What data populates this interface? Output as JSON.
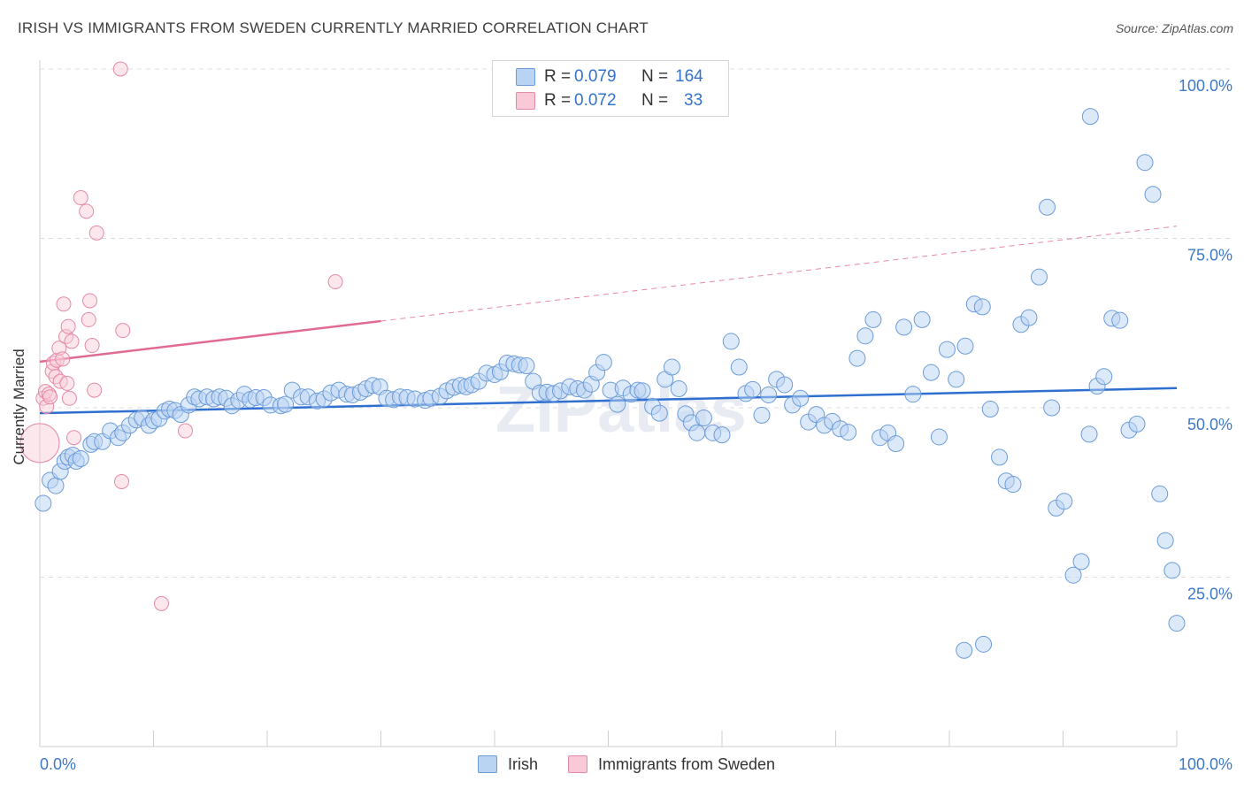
{
  "title": "IRISH VS IMMIGRANTS FROM SWEDEN CURRENTLY MARRIED CORRELATION CHART",
  "source": "Source: ZipAtlas.com",
  "colors": {
    "blue": "#6b9bd8",
    "blue_fill": "#b9d3f3",
    "blue_line": "#2e6fcf",
    "pink": "#e489a6",
    "pink_fill": "#f9c9d7",
    "pink_line": "#e06a92",
    "tick_label": "#3d78c9"
  },
  "stats": [
    {
      "r_label": "R = ",
      "r_value": "0.079",
      "n_label": "N = ",
      "n_value": "164"
    },
    {
      "r_label": "R = ",
      "r_value": "0.072",
      "n_label": "N = ",
      "n_value": "33"
    }
  ],
  "legend": [
    {
      "label": "Irish"
    },
    {
      "label": "Immigrants from Sweden"
    }
  ],
  "chart_data": {
    "type": "scatter",
    "xlabel": "",
    "ylabel": "Currently Married",
    "xlim": [
      0,
      100
    ],
    "ylim": [
      0,
      100
    ],
    "x_tick_labels": [
      "0.0%",
      "100.0%"
    ],
    "y_ticks": [
      {
        "value": 25,
        "label": "25.0%"
      },
      {
        "value": 50,
        "label": "50.0%"
      },
      {
        "value": 75,
        "label": "75.0%"
      },
      {
        "value": 100,
        "label": "100.0%"
      }
    ],
    "grid": "horizontal dashed",
    "watermark": "ZIPatlas",
    "series": [
      {
        "name": "Irish",
        "trend": {
          "x": [
            0,
            100
          ],
          "y": [
            49.2,
            52.9
          ]
        },
        "points": [
          [
            0.3,
            35.9
          ],
          [
            0.9,
            39.3
          ],
          [
            1.4,
            38.5
          ],
          [
            1.8,
            40.6
          ],
          [
            2.2,
            42.1
          ],
          [
            2.5,
            42.7
          ],
          [
            2.9,
            43.0
          ],
          [
            3.2,
            42.1
          ],
          [
            3.6,
            42.5
          ],
          [
            4.5,
            44.6
          ],
          [
            4.8,
            45.0
          ],
          [
            5.5,
            45.0
          ],
          [
            6.2,
            46.6
          ],
          [
            6.9,
            45.6
          ],
          [
            7.3,
            46.3
          ],
          [
            7.9,
            47.4
          ],
          [
            8.5,
            48.2
          ],
          [
            9.0,
            48.5
          ],
          [
            9.6,
            47.4
          ],
          [
            10.0,
            48.1
          ],
          [
            10.5,
            48.4
          ],
          [
            11.0,
            49.5
          ],
          [
            11.4,
            49.8
          ],
          [
            11.9,
            49.6
          ],
          [
            12.4,
            49.0
          ],
          [
            13.1,
            50.4
          ],
          [
            13.6,
            51.6
          ],
          [
            14.0,
            51.3
          ],
          [
            14.7,
            51.6
          ],
          [
            15.3,
            51.3
          ],
          [
            15.8,
            51.6
          ],
          [
            16.4,
            51.4
          ],
          [
            16.9,
            50.3
          ],
          [
            17.5,
            51.1
          ],
          [
            18.0,
            52.0
          ],
          [
            18.5,
            51.2
          ],
          [
            19.0,
            51.5
          ],
          [
            19.7,
            51.5
          ],
          [
            20.3,
            50.4
          ],
          [
            21.2,
            50.3
          ],
          [
            21.6,
            50.5
          ],
          [
            22.2,
            52.6
          ],
          [
            23.0,
            51.6
          ],
          [
            23.6,
            51.6
          ],
          [
            24.4,
            51.0
          ],
          [
            25.0,
            51.3
          ],
          [
            25.6,
            52.2
          ],
          [
            26.3,
            52.6
          ],
          [
            27.0,
            52.0
          ],
          [
            27.5,
            51.9
          ],
          [
            28.2,
            52.3
          ],
          [
            28.7,
            52.8
          ],
          [
            29.3,
            53.3
          ],
          [
            29.9,
            53.1
          ],
          [
            30.5,
            51.4
          ],
          [
            31.1,
            51.2
          ],
          [
            31.7,
            51.6
          ],
          [
            32.3,
            51.5
          ],
          [
            33.0,
            51.3
          ],
          [
            33.9,
            51.1
          ],
          [
            34.4,
            51.4
          ],
          [
            35.2,
            51.7
          ],
          [
            35.8,
            52.5
          ],
          [
            36.4,
            53.0
          ],
          [
            37.0,
            53.3
          ],
          [
            37.5,
            53.1
          ],
          [
            38.0,
            53.4
          ],
          [
            38.6,
            53.9
          ],
          [
            39.3,
            55.1
          ],
          [
            40.0,
            54.9
          ],
          [
            40.5,
            55.3
          ],
          [
            41.1,
            56.6
          ],
          [
            41.7,
            56.5
          ],
          [
            42.2,
            56.3
          ],
          [
            42.8,
            56.2
          ],
          [
            43.4,
            53.9
          ],
          [
            44.0,
            52.2
          ],
          [
            44.6,
            52.3
          ],
          [
            45.2,
            52.1
          ],
          [
            45.8,
            52.5
          ],
          [
            46.6,
            53.1
          ],
          [
            47.3,
            52.8
          ],
          [
            47.9,
            52.6
          ],
          [
            48.5,
            53.5
          ],
          [
            49.0,
            55.2
          ],
          [
            49.6,
            56.7
          ],
          [
            50.2,
            52.6
          ],
          [
            50.8,
            50.5
          ],
          [
            51.3,
            52.9
          ],
          [
            52.0,
            52.0
          ],
          [
            52.6,
            52.6
          ],
          [
            53.0,
            52.5
          ],
          [
            53.9,
            50.2
          ],
          [
            54.5,
            49.2
          ],
          [
            55.0,
            54.2
          ],
          [
            55.6,
            56.0
          ],
          [
            56.2,
            52.8
          ],
          [
            56.8,
            49.1
          ],
          [
            57.3,
            47.8
          ],
          [
            57.8,
            46.3
          ],
          [
            58.4,
            48.5
          ],
          [
            59.2,
            46.3
          ],
          [
            60.0,
            46.0
          ],
          [
            60.8,
            59.8
          ],
          [
            61.5,
            56.0
          ],
          [
            62.1,
            52.1
          ],
          [
            62.7,
            52.7
          ],
          [
            63.5,
            48.9
          ],
          [
            64.1,
            51.9
          ],
          [
            64.8,
            54.2
          ],
          [
            65.5,
            53.4
          ],
          [
            66.2,
            50.4
          ],
          [
            66.9,
            51.4
          ],
          [
            67.6,
            47.9
          ],
          [
            68.3,
            49.0
          ],
          [
            69.0,
            47.4
          ],
          [
            69.7,
            48.0
          ],
          [
            70.4,
            46.9
          ],
          [
            71.1,
            46.4
          ],
          [
            71.9,
            57.3
          ],
          [
            72.6,
            60.6
          ],
          [
            73.3,
            63.0
          ],
          [
            73.9,
            45.6
          ],
          [
            74.6,
            46.3
          ],
          [
            75.3,
            44.7
          ],
          [
            76.0,
            61.9
          ],
          [
            76.8,
            52.0
          ],
          [
            77.6,
            63.0
          ],
          [
            78.4,
            55.2
          ],
          [
            79.1,
            45.7
          ],
          [
            79.8,
            58.6
          ],
          [
            80.6,
            54.2
          ],
          [
            81.4,
            59.1
          ],
          [
            82.2,
            65.3
          ],
          [
            82.9,
            64.9
          ],
          [
            83.6,
            49.8
          ],
          [
            84.4,
            42.7
          ],
          [
            85.0,
            39.2
          ],
          [
            85.6,
            38.7
          ],
          [
            86.3,
            62.3
          ],
          [
            87.0,
            63.3
          ],
          [
            87.9,
            69.3
          ],
          [
            88.6,
            79.6
          ],
          [
            89.4,
            35.2
          ],
          [
            90.1,
            36.2
          ],
          [
            90.9,
            25.3
          ],
          [
            91.6,
            27.3
          ],
          [
            92.3,
            46.1
          ],
          [
            93.0,
            53.2
          ],
          [
            93.6,
            54.6
          ],
          [
            94.3,
            63.2
          ],
          [
            95.0,
            62.9
          ],
          [
            95.8,
            46.7
          ],
          [
            96.5,
            47.6
          ],
          [
            97.2,
            86.2
          ],
          [
            97.9,
            81.5
          ],
          [
            98.5,
            37.3
          ],
          [
            99.0,
            30.4
          ],
          [
            99.6,
            26.0
          ],
          [
            100.0,
            18.2
          ],
          [
            92.4,
            93.0
          ],
          [
            89.0,
            50.0
          ],
          [
            81.3,
            14.2
          ],
          [
            83.0,
            15.1
          ]
        ]
      },
      {
        "name": "Immigrants from Sweden",
        "trend": {
          "x": [
            0,
            30
          ],
          "y": [
            56.8,
            62.8
          ]
        },
        "trend_extension": {
          "x": [
            30,
            100
          ],
          "y": [
            62.8,
            76.8
          ]
        },
        "points": [
          [
            0.0,
            44.8
          ],
          [
            0.3,
            51.4
          ],
          [
            0.5,
            52.4
          ],
          [
            0.6,
            50.2
          ],
          [
            0.8,
            52.0
          ],
          [
            0.9,
            51.6
          ],
          [
            1.1,
            55.4
          ],
          [
            1.2,
            56.6
          ],
          [
            1.4,
            54.6
          ],
          [
            1.5,
            57.0
          ],
          [
            1.7,
            58.8
          ],
          [
            1.8,
            53.9
          ],
          [
            2.0,
            57.2
          ],
          [
            2.1,
            65.3
          ],
          [
            2.3,
            60.5
          ],
          [
            2.4,
            53.6
          ],
          [
            2.5,
            62.0
          ],
          [
            2.6,
            51.4
          ],
          [
            2.8,
            59.8
          ],
          [
            3.0,
            45.6
          ],
          [
            3.6,
            81.0
          ],
          [
            4.1,
            79.0
          ],
          [
            4.3,
            63.0
          ],
          [
            4.4,
            65.8
          ],
          [
            4.6,
            59.2
          ],
          [
            4.8,
            52.6
          ],
          [
            5.0,
            75.8
          ],
          [
            7.2,
            39.1
          ],
          [
            7.3,
            61.4
          ],
          [
            7.1,
            100.0
          ],
          [
            10.7,
            21.1
          ],
          [
            12.8,
            46.6
          ],
          [
            26.0,
            68.6
          ]
        ]
      }
    ]
  }
}
